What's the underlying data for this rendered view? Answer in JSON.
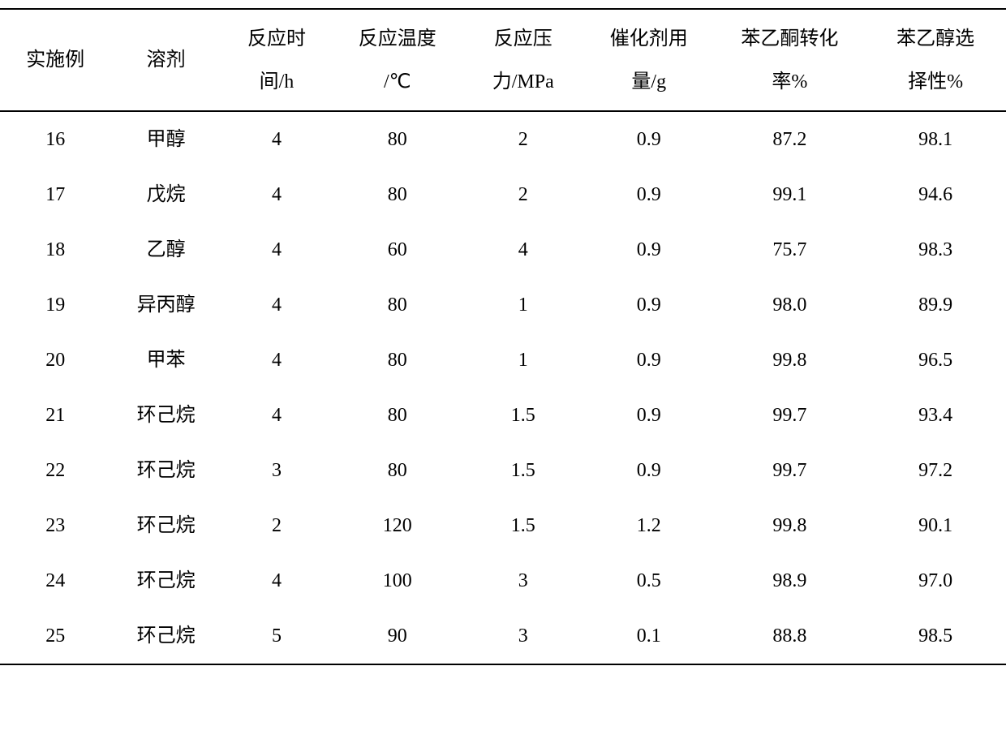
{
  "table": {
    "columns": [
      {
        "line1": "实施例",
        "line2": ""
      },
      {
        "line1": "溶剂",
        "line2": ""
      },
      {
        "line1": "反应时",
        "line2": "间/h"
      },
      {
        "line1": "反应温度",
        "line2": "/℃"
      },
      {
        "line1": "反应压",
        "line2": "力/MPa"
      },
      {
        "line1": "催化剂用",
        "line2": "量/g"
      },
      {
        "line1": "苯乙酮转化",
        "line2": "率%"
      },
      {
        "line1": "苯乙醇选",
        "line2": "择性%"
      }
    ],
    "rows": [
      [
        "16",
        "甲醇",
        "4",
        "80",
        "2",
        "0.9",
        "87.2",
        "98.1"
      ],
      [
        "17",
        "戊烷",
        "4",
        "80",
        "2",
        "0.9",
        "99.1",
        "94.6"
      ],
      [
        "18",
        "乙醇",
        "4",
        "60",
        "4",
        "0.9",
        "75.7",
        "98.3"
      ],
      [
        "19",
        "异丙醇",
        "4",
        "80",
        "1",
        "0.9",
        "98.0",
        "89.9"
      ],
      [
        "20",
        "甲苯",
        "4",
        "80",
        "1",
        "0.9",
        "99.8",
        "96.5"
      ],
      [
        "21",
        "环己烷",
        "4",
        "80",
        "1.5",
        "0.9",
        "99.7",
        "93.4"
      ],
      [
        "22",
        "环己烷",
        "3",
        "80",
        "1.5",
        "0.9",
        "99.7",
        "97.2"
      ],
      [
        "23",
        "环己烷",
        "2",
        "120",
        "1.5",
        "1.2",
        "99.8",
        "90.1"
      ],
      [
        "24",
        "环己烷",
        "4",
        "100",
        "3",
        "0.5",
        "98.9",
        "97.0"
      ],
      [
        "25",
        "环己烷",
        "5",
        "90",
        "3",
        "0.1",
        "88.8",
        "98.5"
      ]
    ],
    "text_color": "#000000",
    "border_color": "#000000",
    "background_color": "#ffffff",
    "header_fontsize": 24,
    "cell_fontsize": 24
  }
}
